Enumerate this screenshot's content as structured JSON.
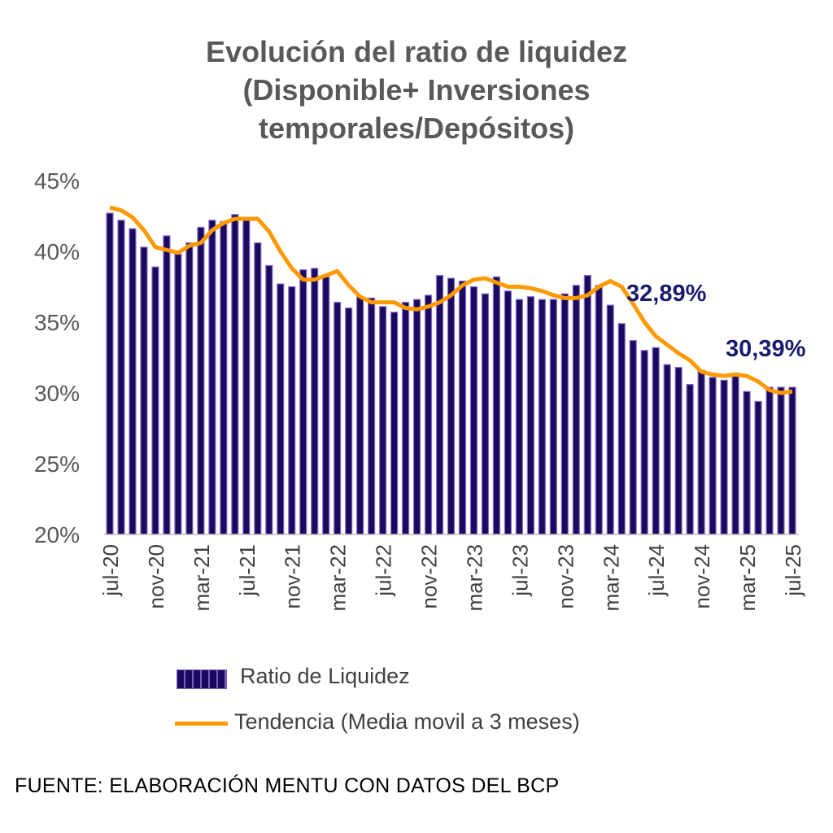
{
  "chart_data": {
    "type": "bar",
    "title": [
      "Evolución del ratio de liquidez",
      "(Disponible+ Inversiones",
      "temporales/Depósitos)"
    ],
    "xlabel": "",
    "ylabel": "",
    "ylim": [
      20,
      45
    ],
    "yticks": [
      "20%",
      "25%",
      "30%",
      "35%",
      "40%",
      "45%"
    ],
    "grid": false,
    "legend_position": "bottom",
    "x": [
      "jul-20",
      "ago-20",
      "sep-20",
      "oct-20",
      "nov-20",
      "dic-20",
      "ene-21",
      "feb-21",
      "mar-21",
      "abr-21",
      "may-21",
      "jun-21",
      "jul-21",
      "ago-21",
      "sep-21",
      "oct-21",
      "nov-21",
      "dic-21",
      "ene-22",
      "feb-22",
      "mar-22",
      "abr-22",
      "may-22",
      "jun-22",
      "jul-22",
      "ago-22",
      "sep-22",
      "oct-22",
      "nov-22",
      "dic-22",
      "ene-23",
      "feb-23",
      "mar-23",
      "abr-23",
      "may-23",
      "jun-23",
      "jul-23",
      "ago-23",
      "sep-23",
      "oct-23",
      "nov-23",
      "dic-23",
      "ene-24",
      "feb-24",
      "mar-24",
      "abr-24",
      "may-24",
      "jun-24",
      "jul-24",
      "ago-24",
      "sep-24",
      "oct-24",
      "nov-24",
      "dic-24",
      "ene-25",
      "feb-25",
      "mar-25",
      "abr-25",
      "may-25",
      "jun-25",
      "jul-25"
    ],
    "xtick_labels": [
      "jul-20",
      "nov-20",
      "mar-21",
      "jul-21",
      "nov-21",
      "mar-22",
      "jul-22",
      "nov-22",
      "mar-23",
      "jul-23",
      "nov-23",
      "mar-24",
      "jul-24",
      "nov-24",
      "mar-25",
      "jul-25"
    ],
    "series": [
      {
        "name": "Ratio de Liquidez",
        "kind": "bar",
        "color": "#1a0a5e",
        "values": [
          42.7,
          42.2,
          41.6,
          40.3,
          38.9,
          41.1,
          39.8,
          40.6,
          41.7,
          42.2,
          42.1,
          42.6,
          42.2,
          40.6,
          39.0,
          37.7,
          37.5,
          38.7,
          38.8,
          38.2,
          36.4,
          36.0,
          36.8,
          36.7,
          36.1,
          35.7,
          36.4,
          36.6,
          36.9,
          38.3,
          38.1,
          37.9,
          37.5,
          37.0,
          38.2,
          37.2,
          36.6,
          36.8,
          36.6,
          36.6,
          37.0,
          37.6,
          38.3,
          37.6,
          36.2,
          34.9,
          33.7,
          33.0,
          33.2,
          32.0,
          31.8,
          30.6,
          31.6,
          31.1,
          30.9,
          31.4,
          30.1,
          29.4,
          30.4,
          30.4,
          30.4
        ]
      },
      {
        "name": "Tendencia (Media movil a 3 meses)",
        "kind": "line",
        "color": "#ff9900",
        "values": [
          43.1,
          42.9,
          42.4,
          41.5,
          40.3,
          40.1,
          39.9,
          40.4,
          40.6,
          41.5,
          42.0,
          42.3,
          42.3,
          42.3,
          41.4,
          40.0,
          38.8,
          38.0,
          38.0,
          38.3,
          38.6,
          37.6,
          36.8,
          36.4,
          36.4,
          36.4,
          36.0,
          35.9,
          36.1,
          36.4,
          36.9,
          37.6,
          38.0,
          38.1,
          37.8,
          37.5,
          37.5,
          37.4,
          37.2,
          36.9,
          36.7,
          36.7,
          36.9,
          37.5,
          37.9,
          37.5,
          36.3,
          35.0,
          34.0,
          33.4,
          32.8,
          32.3,
          31.5,
          31.3,
          31.2,
          31.3,
          31.2,
          30.8,
          30.2,
          30.0,
          30.1
        ]
      }
    ],
    "annotations": [
      "32,89%",
      "30,39%"
    ]
  },
  "source": "FUENTE: ELABORACIÓN MENTU CON DATOS DEL BCP"
}
